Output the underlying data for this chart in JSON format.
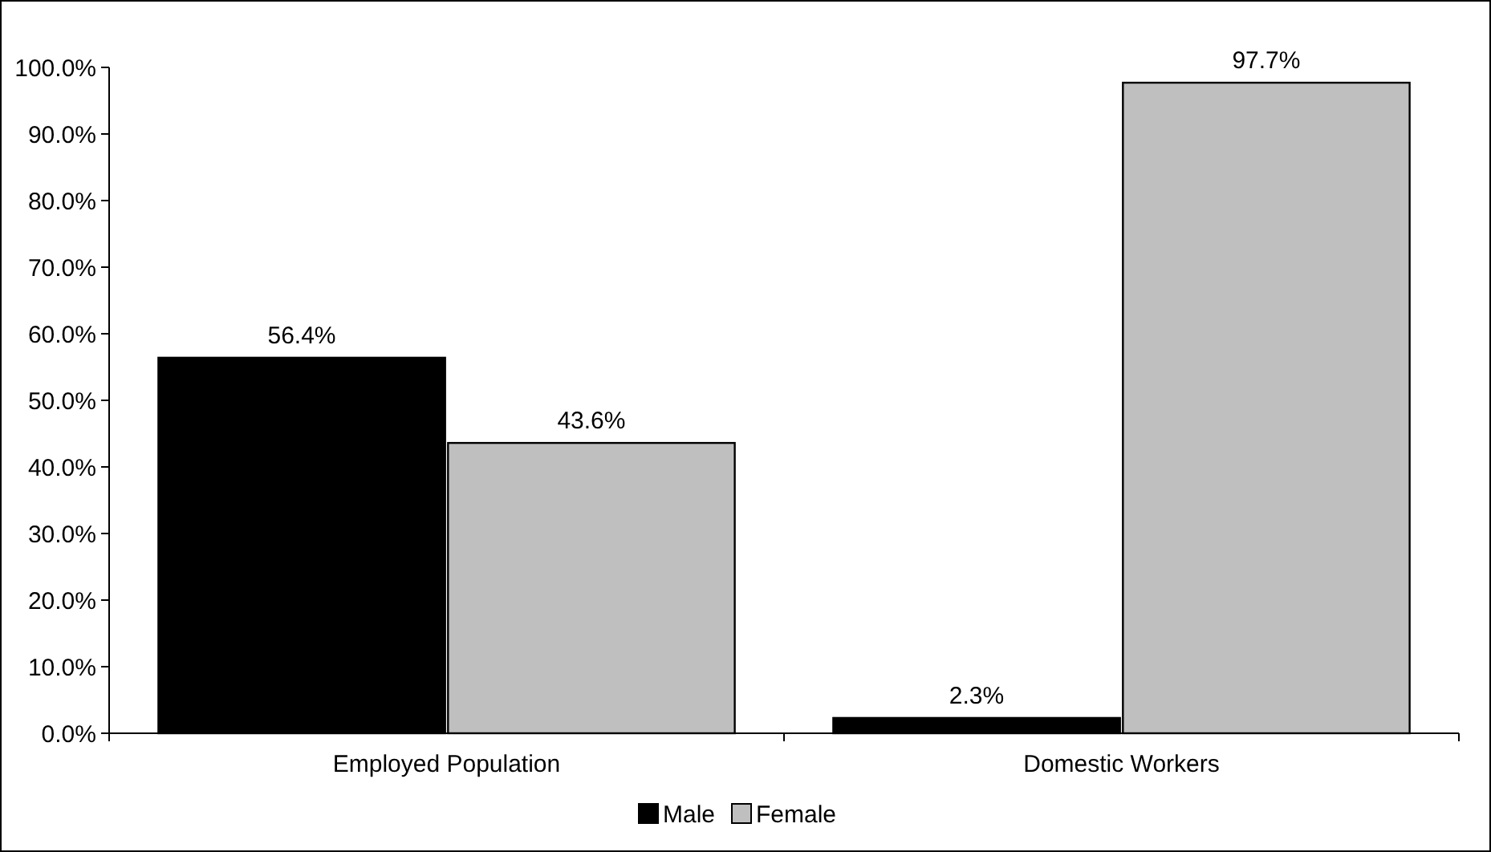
{
  "chart_data": {
    "type": "bar",
    "categories": [
      "Employed Population",
      "Domestic Workers"
    ],
    "series": [
      {
        "name": "Male",
        "color": "#000000",
        "values": [
          56.4,
          2.3
        ],
        "value_labels": [
          "56.4%",
          "2.3%"
        ]
      },
      {
        "name": "Female",
        "color": "#bfbfbf",
        "values": [
          43.6,
          97.7
        ],
        "value_labels": [
          "43.6%",
          "97.7%"
        ]
      }
    ],
    "ylim": [
      0,
      100
    ],
    "yticks": [
      {
        "value": 0,
        "label": "0.0%"
      },
      {
        "value": 10,
        "label": "10.0%"
      },
      {
        "value": 20,
        "label": "20.0%"
      },
      {
        "value": 30,
        "label": "30.0%"
      },
      {
        "value": 40,
        "label": "40.0%"
      },
      {
        "value": 50,
        "label": "50.0%"
      },
      {
        "value": 60,
        "label": "60.0%"
      },
      {
        "value": 70,
        "label": "70.0%"
      },
      {
        "value": 80,
        "label": "80.0%"
      },
      {
        "value": 90,
        "label": "90.0%"
      },
      {
        "value": 100,
        "label": "100.0%"
      }
    ],
    "legend": "bottom",
    "grid": false
  }
}
